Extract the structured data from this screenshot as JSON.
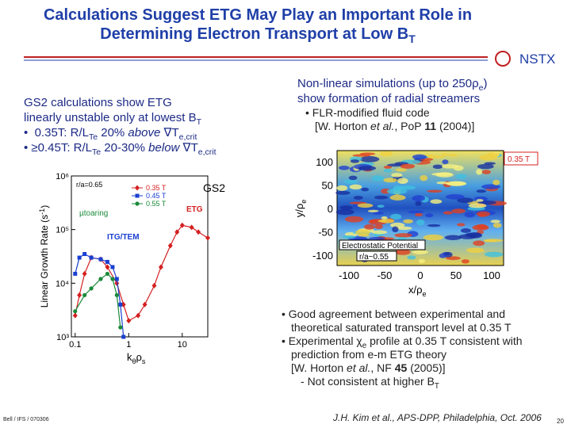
{
  "title_line1": "Calculations Suggest ETG May Play an Important Role in",
  "title_line2": [
    "Determining Electron Transport at Low B",
    "T"
  ],
  "logo": "NSTX",
  "left_text": {
    "line1": "GS2 calculations show ETG",
    "line2": [
      "linearly unstable only at lowest B",
      "T"
    ],
    "bullet1": [
      "0.35T: R/L",
      "Te",
      " 20% ",
      "above",
      " ∇T",
      "e,crit"
    ],
    "bullet2": [
      "≥0.45T: R/L",
      "Te",
      " 20-30% ",
      "below",
      " ∇T",
      "e,crit"
    ]
  },
  "chart_data": {
    "type": "line",
    "ylabel": [
      "Linear Growth Rate (s",
      "-1",
      ")"
    ],
    "xlabel": [
      "k",
      "θ",
      "ρ",
      "s"
    ],
    "log_x": true,
    "log_y": true,
    "xlim": [
      0.085,
      30
    ],
    "ylim": [
      1000,
      1000000
    ],
    "xticks": [
      0.1,
      1,
      10
    ],
    "yticks": [
      {
        "value": 1000,
        "label": "10³"
      },
      {
        "value": 10000,
        "label": "10⁴"
      },
      {
        "value": 100000,
        "label": "10⁵"
      },
      {
        "value": 1000000,
        "label": "10⁶"
      }
    ],
    "annotations": {
      "radius": "r/a=0.65",
      "tearing": "µtoaring",
      "etg": "ETG",
      "itg": "ITG/TEM",
      "code": "GS2"
    },
    "series": [
      {
        "name": "0.35 T",
        "color": "#d42020",
        "marker": "diamond",
        "x": [
          0.1,
          0.12,
          0.15,
          0.2,
          0.3,
          0.4,
          0.6,
          0.8,
          1.0,
          1.5,
          2,
          3,
          4,
          6,
          8,
          10,
          15,
          20,
          30
        ],
        "values": [
          2500,
          6000,
          15000,
          30000,
          28000,
          20000,
          10000,
          4000,
          2000,
          2500,
          4000,
          9000,
          20000,
          50000,
          90000,
          120000,
          110000,
          90000,
          70000
        ]
      },
      {
        "name": "0.45 T",
        "color": "#1a3fd0",
        "marker": "square",
        "x": [
          0.1,
          0.12,
          0.15,
          0.2,
          0.3,
          0.4,
          0.5,
          0.6,
          0.7,
          0.8
        ],
        "values": [
          15000,
          30000,
          35000,
          30000,
          28000,
          25000,
          20000,
          12000,
          4000,
          1000
        ]
      },
      {
        "name": "0.55 T",
        "color": "#1a8a3a",
        "marker": "circle",
        "x": [
          0.1,
          0.15,
          0.2,
          0.3,
          0.4,
          0.5,
          0.6,
          0.7
        ],
        "values": [
          3000,
          6000,
          8000,
          12000,
          15000,
          12000,
          6000,
          1500
        ]
      }
    ]
  },
  "right_text": {
    "line1": [
      "Non-linear simulations (up to 250ρ",
      "e",
      ")"
    ],
    "line2": "show formation of radial streamers",
    "bullet1": "FLR-modified fluid code",
    "bullet1_ref": [
      "[W. Horton ",
      "et al.",
      ", PoP ",
      "11",
      " (2004)]"
    ]
  },
  "contour_plot": {
    "field_tag": "0.35 T",
    "legend": "Electrostatic Potential",
    "radius": "r/a~0.55",
    "xticks": [
      -100,
      -50,
      0,
      50,
      100
    ],
    "yticks": [
      100,
      50,
      0,
      -50,
      -100
    ],
    "xlabel": [
      "x/ρ",
      "e"
    ],
    "ylabel": [
      "y/ρ",
      "e"
    ]
  },
  "bottom_bullets": {
    "b1": "Good agreement between experimental and theoretical saturated transport level at 0.35 T",
    "b2": [
      "Experimental ",
      "χ",
      "e",
      " profile at 0.35 T consistent with prediction from e-m ETG theory"
    ],
    "b2_ref": [
      "[W. Horton ",
      "et al.",
      ", NF ",
      "45",
      " (2005)]"
    ],
    "sub": [
      "Not consistent at higher B",
      "T"
    ]
  },
  "footer": {
    "left": "Bell / IFS / 070306",
    "center": "J.H. Kim et al., APS-DPP, Philadelphia, Oct. 2006",
    "page": "20"
  }
}
